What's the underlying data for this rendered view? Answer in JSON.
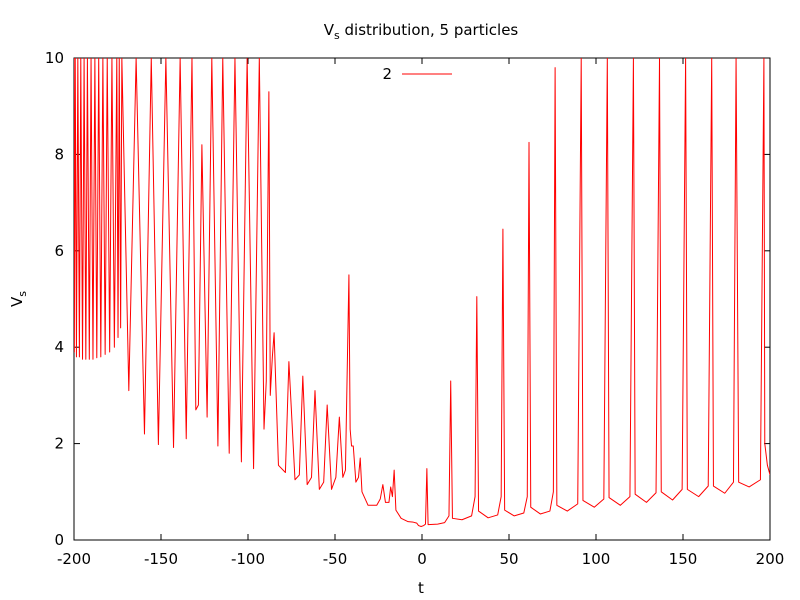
{
  "chart_data": {
    "type": "line",
    "title_main": "V",
    "title_sub": "s",
    "title_rest": " distribution, 5 particles",
    "xlabel": "t",
    "ylabel_main": "V",
    "ylabel_sub": "s",
    "xlim": [
      -200,
      200
    ],
    "ylim": [
      0,
      10
    ],
    "xticks": [
      -200,
      -150,
      -100,
      -50,
      0,
      50,
      100,
      150,
      200
    ],
    "yticks": [
      0,
      2,
      4,
      6,
      8,
      10
    ],
    "grid": false,
    "legend_position": "top-center",
    "series": [
      {
        "name": "2",
        "color": "#ff0000",
        "points": [
          [
            -200,
            10
          ],
          [
            -199.8,
            3.9
          ],
          [
            -199.3,
            10
          ],
          [
            -198.6,
            3.8
          ],
          [
            -197.8,
            10
          ],
          [
            -196.9,
            3.8
          ],
          [
            -196.1,
            10
          ],
          [
            -195.1,
            3.75
          ],
          [
            -194.2,
            10
          ],
          [
            -193.2,
            3.75
          ],
          [
            -192.3,
            10
          ],
          [
            -191.2,
            3.75
          ],
          [
            -190.2,
            10
          ],
          [
            -189.1,
            3.75
          ],
          [
            -188.0,
            10
          ],
          [
            -186.9,
            3.78
          ],
          [
            -185.8,
            10
          ],
          [
            -184.6,
            3.8
          ],
          [
            -183.4,
            10
          ],
          [
            -182.1,
            3.85
          ],
          [
            -180.9,
            10
          ],
          [
            -179.5,
            3.9
          ],
          [
            -178.2,
            10
          ],
          [
            -176.8,
            4.0
          ],
          [
            -175.4,
            10
          ],
          [
            -174.7,
            4.2
          ],
          [
            -174.0,
            10
          ],
          [
            -173.2,
            4.4
          ],
          [
            -172.5,
            10
          ],
          [
            -168.5,
            3.1
          ],
          [
            -164.3,
            10
          ],
          [
            -159.5,
            2.2
          ],
          [
            -155.6,
            10
          ],
          [
            -151.5,
            1.98
          ],
          [
            -147.2,
            10
          ],
          [
            -142.8,
            1.92
          ],
          [
            -139.0,
            10
          ],
          [
            -135.5,
            2.1
          ],
          [
            -132.2,
            10
          ],
          [
            -130.0,
            2.7
          ],
          [
            -128.5,
            2.8
          ],
          [
            -126.5,
            8.2
          ],
          [
            -123.5,
            2.55
          ],
          [
            -120.8,
            10
          ],
          [
            -117.3,
            1.95
          ],
          [
            -114.5,
            10
          ],
          [
            -110.8,
            1.8
          ],
          [
            -107.5,
            10
          ],
          [
            -103.8,
            1.62
          ],
          [
            -100.5,
            10
          ],
          [
            -96.8,
            1.48
          ],
          [
            -93.5,
            10
          ],
          [
            -90.8,
            2.3
          ],
          [
            -89.5,
            3.3
          ],
          [
            -88.0,
            9.3
          ],
          [
            -87.2,
            3.0
          ],
          [
            -86.0,
            3.8
          ],
          [
            -85.0,
            4.3
          ],
          [
            -82.5,
            1.55
          ],
          [
            -78.5,
            1.4
          ],
          [
            -76.5,
            3.7
          ],
          [
            -73.0,
            1.25
          ],
          [
            -70.5,
            1.35
          ],
          [
            -68.5,
            3.4
          ],
          [
            -66.0,
            1.15
          ],
          [
            -63.5,
            1.3
          ],
          [
            -61.5,
            3.1
          ],
          [
            -59.0,
            1.05
          ],
          [
            -56.5,
            1.2
          ],
          [
            -54.5,
            2.8
          ],
          [
            -52.0,
            1.05
          ],
          [
            -49.5,
            1.3
          ],
          [
            -47.5,
            2.55
          ],
          [
            -45.5,
            1.3
          ],
          [
            -44.0,
            1.45
          ],
          [
            -42.0,
            5.5
          ],
          [
            -41.3,
            2.3
          ],
          [
            -40.5,
            1.95
          ],
          [
            -39.5,
            1.95
          ],
          [
            -38.0,
            1.2
          ],
          [
            -36.5,
            1.3
          ],
          [
            -35.5,
            1.7
          ],
          [
            -34.5,
            1.0
          ],
          [
            -31.0,
            0.72
          ],
          [
            -26.0,
            0.72
          ],
          [
            -24.0,
            0.85
          ],
          [
            -22.5,
            1.15
          ],
          [
            -21.0,
            0.78
          ],
          [
            -19.0,
            0.78
          ],
          [
            -18.0,
            1.1
          ],
          [
            -17.0,
            0.9
          ],
          [
            -16.0,
            1.45
          ],
          [
            -15.0,
            0.62
          ],
          [
            -12.0,
            0.45
          ],
          [
            -8.0,
            0.38
          ],
          [
            -5.0,
            0.37
          ],
          [
            -3.0,
            0.35
          ],
          [
            -2.0,
            0.3
          ],
          [
            -0.5,
            0.28
          ],
          [
            1.0,
            0.3
          ],
          [
            2.0,
            0.33
          ],
          [
            2.8,
            1.48
          ],
          [
            3.5,
            0.32
          ],
          [
            9.0,
            0.33
          ],
          [
            13.0,
            0.36
          ],
          [
            15.5,
            0.5
          ],
          [
            16.5,
            3.3
          ],
          [
            17.5,
            0.45
          ],
          [
            23.0,
            0.42
          ],
          [
            28.5,
            0.5
          ],
          [
            30.5,
            0.9
          ],
          [
            31.5,
            5.05
          ],
          [
            32.5,
            0.6
          ],
          [
            38.0,
            0.46
          ],
          [
            43.5,
            0.52
          ],
          [
            45.5,
            0.9
          ],
          [
            46.5,
            6.45
          ],
          [
            47.5,
            0.62
          ],
          [
            53.0,
            0.5
          ],
          [
            58.5,
            0.56
          ],
          [
            60.5,
            0.9
          ],
          [
            61.5,
            8.25
          ],
          [
            62.5,
            0.68
          ],
          [
            68.0,
            0.54
          ],
          [
            73.5,
            0.6
          ],
          [
            75.5,
            1.0
          ],
          [
            76.5,
            9.8
          ],
          [
            77.5,
            0.72
          ],
          [
            83.5,
            0.6
          ],
          [
            89.5,
            0.75
          ],
          [
            91.5,
            10
          ],
          [
            92.5,
            0.82
          ],
          [
            99.0,
            0.68
          ],
          [
            104.5,
            0.85
          ],
          [
            106.5,
            10
          ],
          [
            107.5,
            0.88
          ],
          [
            114.0,
            0.72
          ],
          [
            119.5,
            0.9
          ],
          [
            121.5,
            10
          ],
          [
            122.5,
            0.95
          ],
          [
            129.0,
            0.78
          ],
          [
            134.5,
            0.98
          ],
          [
            136.5,
            10
          ],
          [
            137.5,
            1.0
          ],
          [
            144.0,
            0.83
          ],
          [
            149.5,
            1.05
          ],
          [
            151.5,
            10
          ],
          [
            152.5,
            1.05
          ],
          [
            159.0,
            0.9
          ],
          [
            164.5,
            1.12
          ],
          [
            166.5,
            10
          ],
          [
            167.5,
            1.12
          ],
          [
            174.0,
            0.97
          ],
          [
            179.0,
            1.2
          ],
          [
            180.5,
            10
          ],
          [
            182.0,
            1.2
          ],
          [
            188.0,
            1.1
          ],
          [
            194.5,
            1.25
          ],
          [
            196.5,
            10
          ],
          [
            197.0,
            2.0
          ],
          [
            198.5,
            1.55
          ],
          [
            200.0,
            1.35
          ]
        ]
      }
    ]
  }
}
